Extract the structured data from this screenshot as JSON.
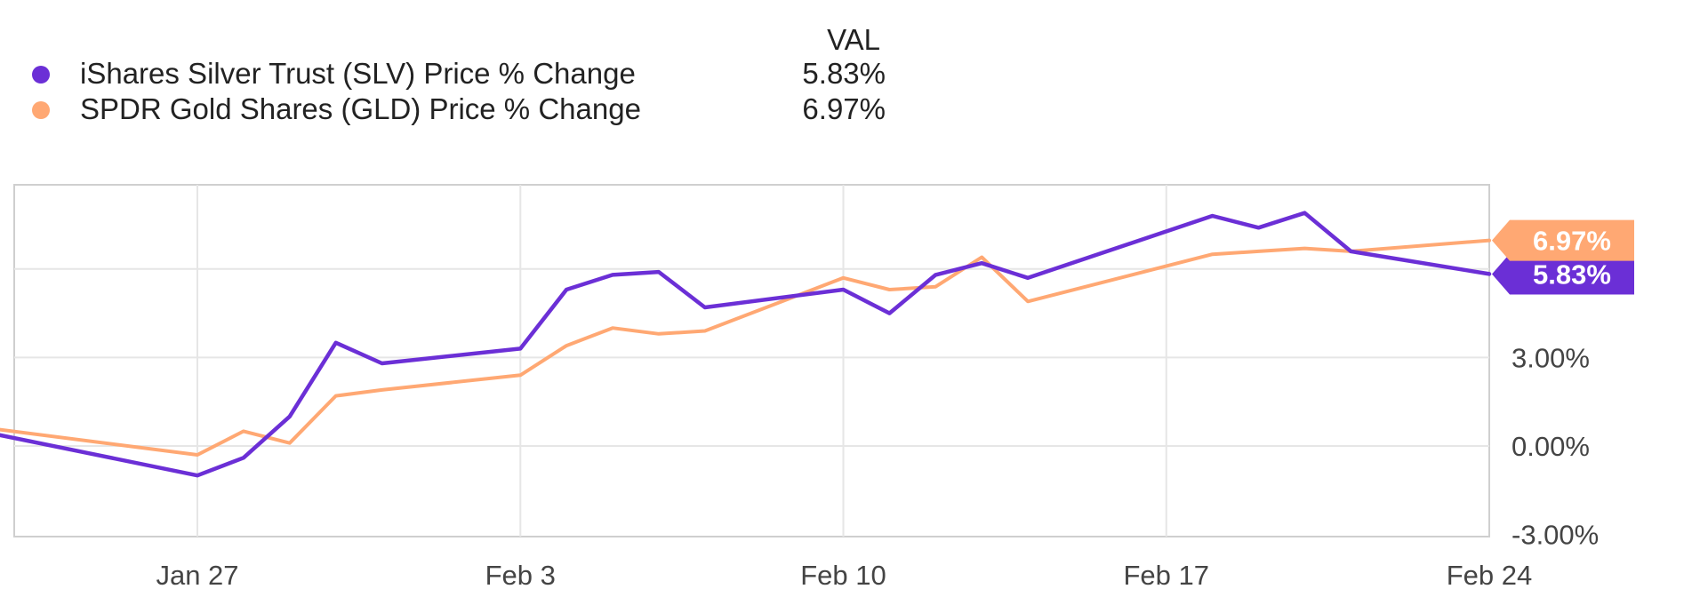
{
  "legend": {
    "value_header": "VAL",
    "items": [
      {
        "name": "iShares Silver Trust (SLV) Price % Change",
        "value": "5.83%",
        "color": "#6b2fd6"
      },
      {
        "name": "SPDR Gold Shares (GLD) Price % Change",
        "value": "6.97%",
        "color": "#ffa873"
      }
    ]
  },
  "chart_data": {
    "type": "line",
    "x_dates": [
      "2020-01-23",
      "2020-01-24",
      "2020-01-27",
      "2020-01-28",
      "2020-01-29",
      "2020-01-30",
      "2020-01-31",
      "2020-02-03",
      "2020-02-04",
      "2020-02-05",
      "2020-02-06",
      "2020-02-07",
      "2020-02-10",
      "2020-02-11",
      "2020-02-12",
      "2020-02-13",
      "2020-02-14",
      "2020-02-18",
      "2020-02-19",
      "2020-02-20",
      "2020-02-21",
      "2020-02-24"
    ],
    "x_tick_labels": [
      "Jan 27",
      "Feb 3",
      "Feb 10",
      "Feb 17",
      "Feb 24"
    ],
    "x_tick_dates": [
      "2020-01-27",
      "2020-02-03",
      "2020-02-10",
      "2020-02-17",
      "2020-02-24"
    ],
    "y_tick_labels": [
      "-3.00%",
      "0.00%",
      "3.00%"
    ],
    "y_tick_values": [
      -3,
      0,
      3
    ],
    "ylim": [
      -3,
      9
    ],
    "grid": true,
    "legend_position": "top-left",
    "series": [
      {
        "name": "iShares Silver Trust (SLV) Price % Change",
        "color": "#6b2fd6",
        "last_label": "5.83%",
        "points": [
          [
            "2020-01-21",
            0.1
          ],
          [
            "2020-01-22",
            0.6
          ],
          [
            "2020-01-27",
            -1.0
          ],
          [
            "2020-01-28",
            -0.4
          ],
          [
            "2020-01-29",
            1.0
          ],
          [
            "2020-01-30",
            3.5
          ],
          [
            "2020-01-31",
            2.8
          ],
          [
            "2020-02-03",
            3.3
          ],
          [
            "2020-02-04",
            5.3
          ],
          [
            "2020-02-05",
            5.8
          ],
          [
            "2020-02-06",
            5.9
          ],
          [
            "2020-02-07",
            4.7
          ],
          [
            "2020-02-10",
            5.3
          ],
          [
            "2020-02-11",
            4.5
          ],
          [
            "2020-02-12",
            5.8
          ],
          [
            "2020-02-13",
            6.2
          ],
          [
            "2020-02-14",
            5.7
          ],
          [
            "2020-02-18",
            7.8
          ],
          [
            "2020-02-19",
            7.4
          ],
          [
            "2020-02-20",
            7.9
          ],
          [
            "2020-02-21",
            6.6
          ],
          [
            "2020-02-24",
            5.83
          ]
        ]
      },
      {
        "name": "SPDR Gold Shares (GLD) Price % Change",
        "color": "#ffa873",
        "last_label": "6.97%",
        "points": [
          [
            "2020-01-21",
            0.1
          ],
          [
            "2020-01-22",
            0.7
          ],
          [
            "2020-01-27",
            -0.3
          ],
          [
            "2020-01-28",
            0.5
          ],
          [
            "2020-01-29",
            0.1
          ],
          [
            "2020-01-30",
            1.7
          ],
          [
            "2020-01-31",
            1.9
          ],
          [
            "2020-02-03",
            2.4
          ],
          [
            "2020-02-04",
            3.4
          ],
          [
            "2020-02-05",
            4.0
          ],
          [
            "2020-02-06",
            3.8
          ],
          [
            "2020-02-07",
            3.9
          ],
          [
            "2020-02-10",
            5.7
          ],
          [
            "2020-02-11",
            5.3
          ],
          [
            "2020-02-12",
            5.4
          ],
          [
            "2020-02-13",
            6.4
          ],
          [
            "2020-02-14",
            4.9
          ],
          [
            "2020-02-18",
            6.5
          ],
          [
            "2020-02-19",
            6.6
          ],
          [
            "2020-02-20",
            6.7
          ],
          [
            "2020-02-21",
            6.6
          ],
          [
            "2020-02-24",
            6.97
          ]
        ]
      }
    ]
  }
}
